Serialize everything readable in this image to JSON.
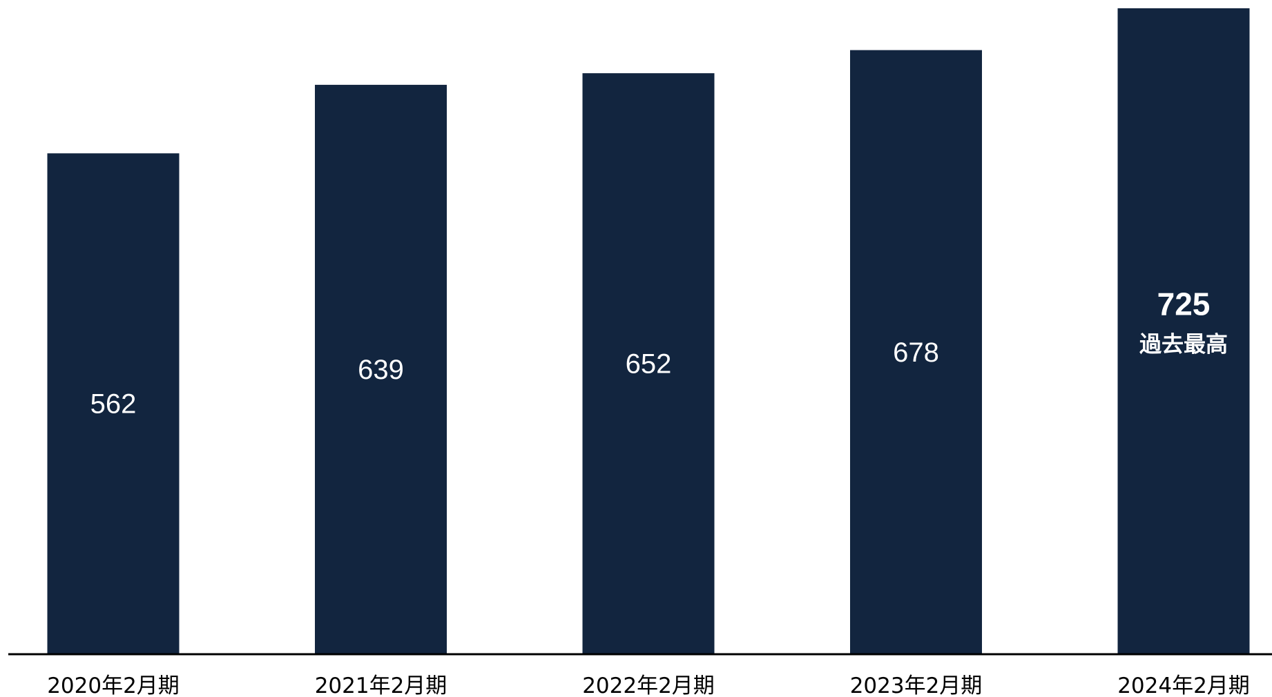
{
  "chart_data": {
    "type": "bar",
    "categories": [
      "2020年2月期",
      "2021年2月期",
      "2022年2月期",
      "2023年2月期",
      "2024年2月期"
    ],
    "values": [
      562,
      639,
      652,
      678,
      725
    ],
    "data_labels": [
      "562",
      "639",
      "652",
      "678",
      "725"
    ],
    "annotations": [
      {
        "category": "2024年2月期",
        "text": "過去最高"
      }
    ],
    "highlight_index": 4,
    "title": "",
    "xlabel": "",
    "ylabel": "",
    "ylim": [
      0,
      725
    ],
    "grid": false,
    "legend": "none",
    "colors": {
      "bar": "#12253f",
      "label": "#ffffff",
      "axis": "#000000",
      "background": "#ffffff"
    }
  }
}
